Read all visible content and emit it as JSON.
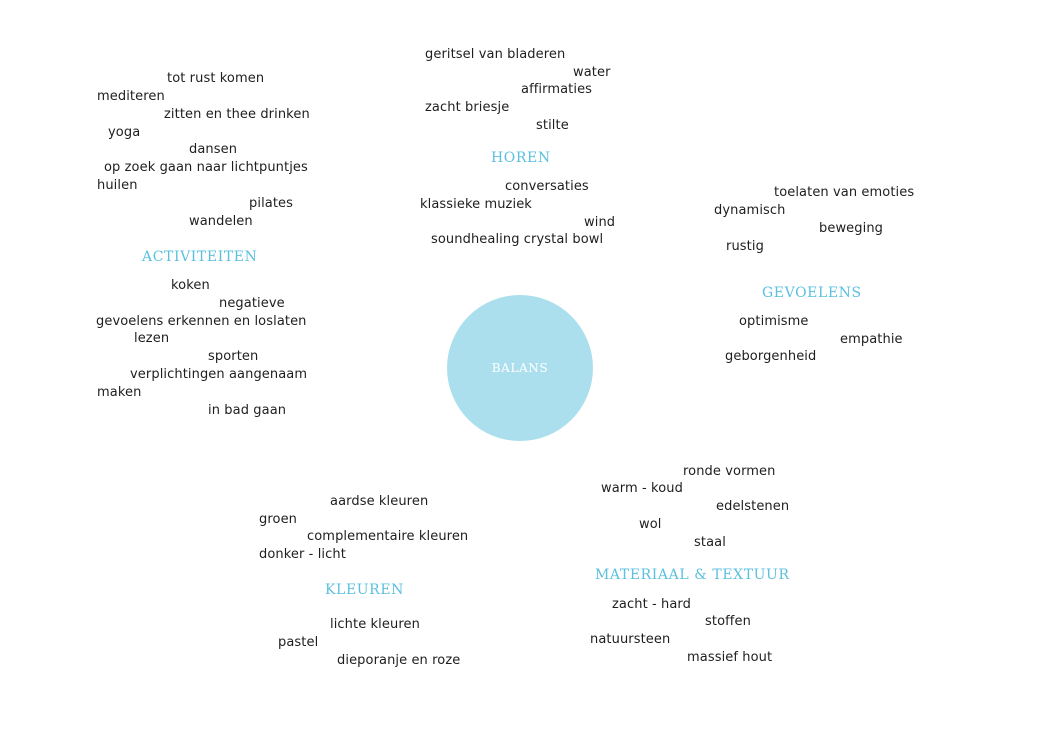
{
  "center": {
    "label": "BALANS",
    "color": "#acdfee"
  },
  "heading_color": "#5bc0de",
  "horen": {
    "heading": "HOREN",
    "items": [
      "geritsel van bladeren",
      "water",
      "affirmaties",
      "zacht briesje",
      "stilte",
      "conversaties",
      "klassieke muziek",
      "wind",
      "soundhealing crystal bowl"
    ]
  },
  "activiteiten": {
    "heading": "ACTIVITEITEN",
    "items": [
      "tot rust komen",
      "mediteren",
      "zitten en thee drinken",
      "yoga",
      "dansen",
      "op zoek gaan naar lichtpuntjes",
      "huilen",
      "pilates",
      "wandelen",
      "koken",
      "negatieve",
      "gevoelens erkennen en loslaten",
      "lezen",
      "sporten",
      "verplichtingen aangenaam",
      "maken",
      "in bad gaan"
    ]
  },
  "gevoelens": {
    "heading": "GEVOELENS",
    "items": [
      "toelaten van  emoties",
      "dynamisch",
      "beweging",
      "rustig",
      "optimisme",
      "empathie",
      "geborgenheid"
    ]
  },
  "materiaal": {
    "heading": "MATERIAAL & TEXTUUR",
    "items": [
      "ronde vormen",
      "warm - koud",
      "edelstenen",
      "wol",
      "staal",
      "zacht - hard",
      "stoffen",
      "natuursteen",
      "massief hout"
    ]
  },
  "kleuren": {
    "heading": "KLEUREN",
    "items": [
      "aardse kleuren",
      "groen",
      "complementaire kleuren",
      "donker  - licht",
      "lichte kleuren",
      "pastel",
      "dieporanje en roze"
    ]
  }
}
